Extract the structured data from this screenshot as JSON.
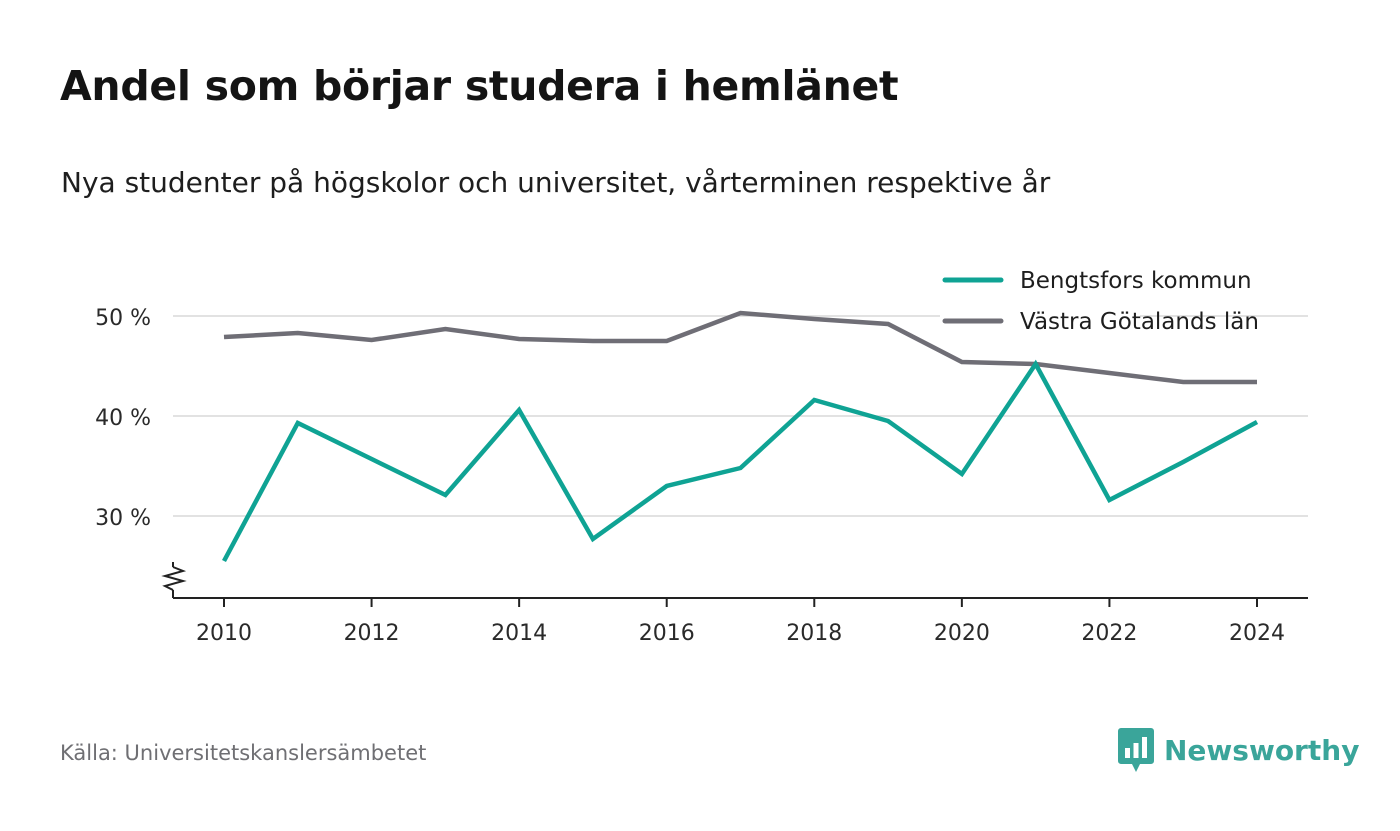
{
  "header": {
    "title": "Andel som börjar studera i hemlänet",
    "subtitle": "Nya studenter på högskolor och universitet, vårterminen respektive år"
  },
  "footer": {
    "source": "Källa: Universitetskanslersämbetet",
    "brand": "Newsworthy",
    "brand_icon": "bar-chart-logo-icon"
  },
  "colors": {
    "accent": "#0fa394",
    "secondary": "#6f6e76",
    "grid": "#d9d9d9",
    "brand": "#3aa59a"
  },
  "chart_data": {
    "type": "line",
    "title": "Andel som börjar studera i hemlänet",
    "subtitle": "Nya studenter på högskolor och universitet, vårterminen respektive år",
    "x": [
      2010,
      2011,
      2012,
      2013,
      2014,
      2015,
      2016,
      2017,
      2018,
      2019,
      2020,
      2021,
      2022,
      2023,
      2024
    ],
    "xticks": [
      2010,
      2012,
      2014,
      2016,
      2018,
      2020,
      2022,
      2024
    ],
    "xtick_labels": [
      "2010",
      "2012",
      "2014",
      "2016",
      "2018",
      "2020",
      "2022",
      "2024"
    ],
    "yticks": [
      30,
      40,
      50
    ],
    "ytick_labels": [
      "30 %",
      "40 %",
      "50 %"
    ],
    "ylim": [
      22,
      50
    ],
    "xlim": [
      2009.4,
      2024.7
    ],
    "y_axis_break": true,
    "grid": true,
    "legend_position": "top-right",
    "series": [
      {
        "name": "Bengtsfors kommun",
        "color": "#0fa394",
        "values": [
          25.5,
          39.3,
          35.7,
          32.1,
          40.6,
          27.7,
          33.0,
          34.8,
          41.6,
          39.5,
          34.2,
          45.2,
          31.6,
          35.4,
          39.4
        ]
      },
      {
        "name": "Västra Götalands län",
        "color": "#6f6e76",
        "values": [
          47.9,
          48.3,
          47.6,
          48.7,
          47.7,
          47.5,
          47.5,
          50.3,
          49.7,
          49.2,
          45.4,
          45.2,
          44.3,
          43.4,
          43.4
        ]
      }
    ],
    "xlabel": "",
    "ylabel": ""
  }
}
